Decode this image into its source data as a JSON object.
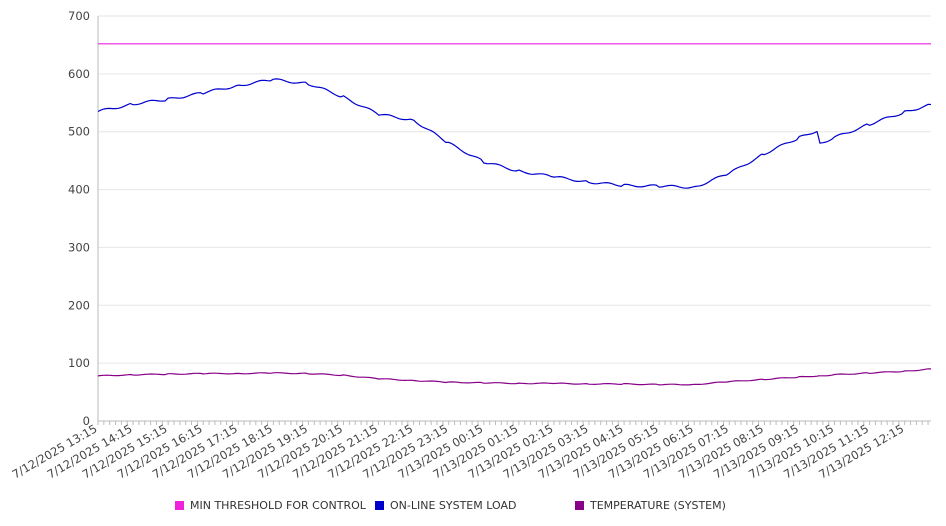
{
  "chart_data": {
    "type": "line",
    "title": "",
    "xlabel": "",
    "ylabel": "",
    "ylim": [
      0,
      700
    ],
    "yticks": [
      0,
      100,
      200,
      300,
      400,
      500,
      600,
      700
    ],
    "grid": true,
    "legend_position": "bottom",
    "x_tick_labels": [
      "7/12/2025 13:15",
      "7/12/2025 14:15",
      "7/12/2025 15:15",
      "7/12/2025 16:15",
      "7/12/2025 17:15",
      "7/12/2025 18:15",
      "7/12/2025 19:15",
      "7/12/2025 20:15",
      "7/12/2025 21:15",
      "7/12/2025 22:15",
      "7/12/2025 23:15",
      "7/13/2025 00:15",
      "7/13/2025 01:15",
      "7/13/2025 02:15",
      "7/13/2025 03:15",
      "7/13/2025 04:15",
      "7/13/2025 05:15",
      "7/13/2025 06:15",
      "7/13/2025 07:15",
      "7/13/2025 08:15",
      "7/13/2025 09:15",
      "7/13/2025 10:15",
      "7/13/2025 11:15",
      "7/13/2025 12:15"
    ],
    "x": [
      "7/12/2025 13:15",
      "7/12/2025 14:15",
      "7/12/2025 15:15",
      "7/12/2025 16:15",
      "7/12/2025 17:15",
      "7/12/2025 18:15",
      "7/12/2025 19:15",
      "7/12/2025 20:15",
      "7/12/2025 21:15",
      "7/12/2025 22:15",
      "7/12/2025 23:15",
      "7/13/2025 00:15",
      "7/13/2025 01:15",
      "7/13/2025 02:15",
      "7/13/2025 03:15",
      "7/13/2025 04:15",
      "7/13/2025 05:15",
      "7/13/2025 06:15",
      "7/13/2025 07:15",
      "7/13/2025 08:15",
      "7/13/2025 09:15",
      "7/13/2025 09:45",
      "7/13/2025 09:50",
      "7/13/2025 10:15",
      "7/13/2025 11:15",
      "7/13/2025 12:15",
      "7/13/2025 13:00"
    ],
    "series": [
      {
        "name": "MIN THRESHOLD FOR CONTROL",
        "color": "#ee22dd",
        "values": [
          652,
          652,
          652,
          652,
          652,
          652,
          652,
          652,
          652,
          652,
          652,
          652,
          652,
          652,
          652,
          652,
          652,
          652,
          652,
          652,
          652,
          652,
          652,
          652,
          652,
          652,
          652
        ]
      },
      {
        "name": "ON-LINE SYSTEM LOAD",
        "color": "#0000cc",
        "values": [
          535,
          548,
          556,
          567,
          580,
          590,
          583,
          560,
          530,
          520,
          480,
          448,
          432,
          422,
          413,
          407,
          406,
          404,
          428,
          462,
          490,
          502,
          480,
          490,
          513,
          534,
          547
        ]
      },
      {
        "name": "TEMPERATURE (SYSTEM)",
        "color": "#880088",
        "values": [
          78,
          80,
          81,
          82,
          82,
          83,
          82,
          79,
          73,
          70,
          67,
          66,
          65,
          65,
          64,
          64,
          63,
          63,
          68,
          72,
          76,
          78,
          78,
          80,
          83,
          86,
          90
        ]
      }
    ]
  }
}
